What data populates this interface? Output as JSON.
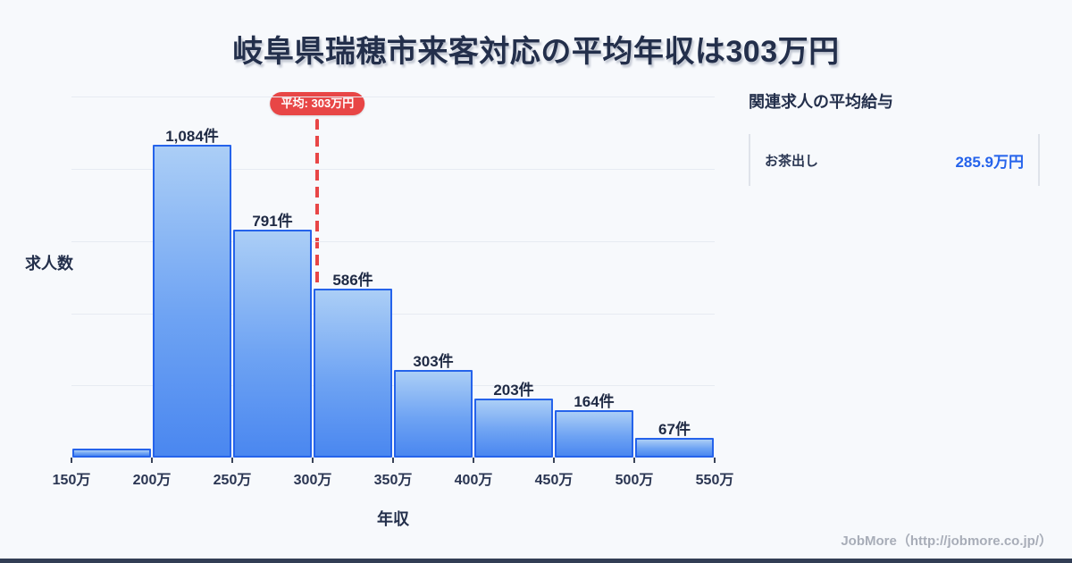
{
  "title": "岐阜県瑞穂市来客対応の平均年収は303万円",
  "chart_data": {
    "type": "bar",
    "title": "岐阜県瑞穂市来客対応の平均年収は303万円",
    "xlabel": "年収",
    "ylabel": "求人数",
    "x_tick_labels": [
      "150万",
      "200万",
      "250万",
      "300万",
      "350万",
      "400万",
      "450万",
      "500万",
      "550万"
    ],
    "bin_width": 50,
    "x_range_man_yen": [
      150,
      550
    ],
    "bars": [
      {
        "label": "",
        "value": 31
      },
      {
        "label": "1,084件",
        "value": 1084
      },
      {
        "label": "791件",
        "value": 791
      },
      {
        "label": "586件",
        "value": 586
      },
      {
        "label": "303件",
        "value": 303
      },
      {
        "label": "203件",
        "value": 203
      },
      {
        "label": "164件",
        "value": 164
      },
      {
        "label": "67件",
        "value": 67
      }
    ],
    "ylim": [
      0,
      1250
    ],
    "grid": true,
    "gridline_values": [
      250,
      500,
      750,
      1000,
      1250
    ],
    "legend": false,
    "average_line": {
      "label": "平均: 303万円",
      "value": 303
    }
  },
  "side_panel": {
    "heading": "関連求人の平均給与",
    "rows": [
      {
        "name": "お茶出し",
        "value": "285.9万円"
      }
    ]
  },
  "footer": {
    "credit": "JobMore（http://jobmore.co.jp/）"
  },
  "colors": {
    "background": "#f7f9fc",
    "title_text": "#232f4b",
    "bar_fill_top": "#abcef6",
    "bar_fill_bottom": "#4a87f0",
    "bar_border": "#2563eb",
    "average_red": "#e84646",
    "grid_line": "#e7ebf2",
    "salary_value_blue": "#2563eb",
    "footer_gray": "#a8adb8",
    "bottom_bar_navy": "#323e55"
  }
}
